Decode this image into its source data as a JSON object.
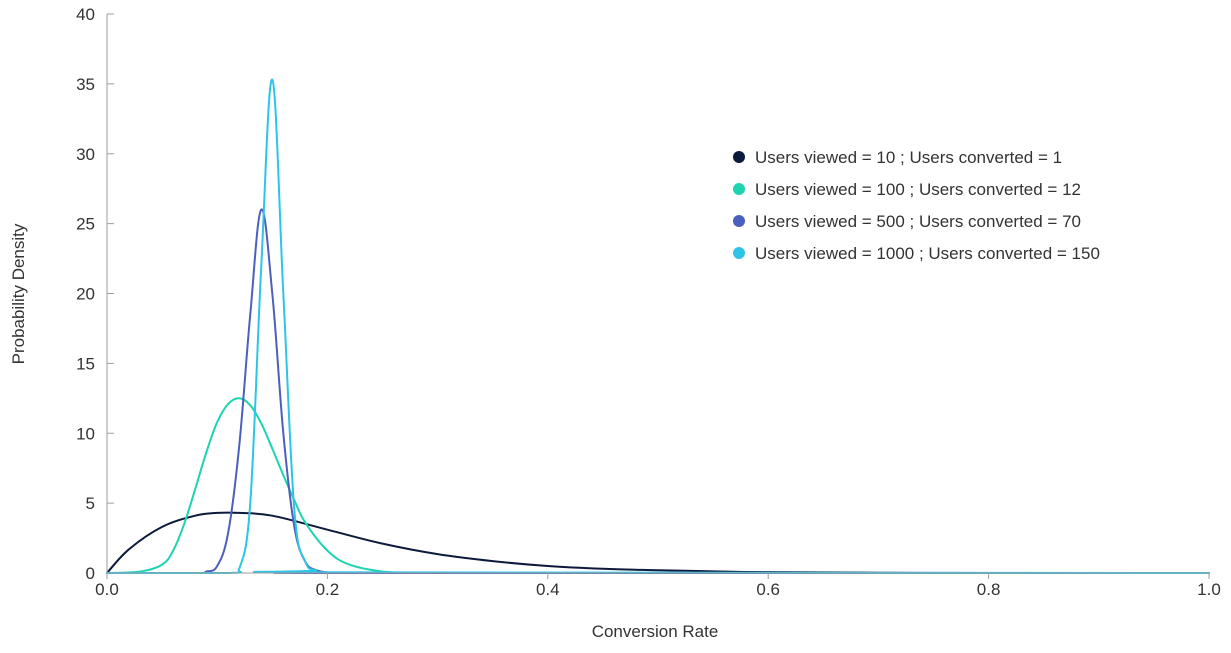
{
  "chart_data": {
    "type": "line",
    "title": "",
    "xlabel": "Conversion Rate",
    "ylabel": "Probability Density",
    "xlim": [
      0,
      1
    ],
    "ylim": [
      0,
      40
    ],
    "x_ticks": [
      "0.0",
      "0.2",
      "0.4",
      "0.6",
      "0.8",
      "1.0"
    ],
    "y_ticks": [
      "0",
      "5",
      "10",
      "15",
      "20",
      "25",
      "30",
      "35",
      "40"
    ],
    "grid": false,
    "legend_position": "top-right",
    "series": [
      {
        "name": "Users viewed = 10 ; Users converted = 1",
        "color": "#0c1a3c",
        "x": [
          0.0,
          0.02,
          0.05,
          0.08,
          0.1,
          0.12,
          0.15,
          0.2,
          0.25,
          0.3,
          0.35,
          0.4,
          0.45,
          0.5,
          0.55,
          0.6,
          0.7,
          0.8,
          1.0
        ],
        "y": [
          0.0,
          1.7,
          3.3,
          4.1,
          4.3,
          4.3,
          4.1,
          3.1,
          2.1,
          1.35,
          0.85,
          0.5,
          0.3,
          0.2,
          0.12,
          0.06,
          0.02,
          0.0,
          0.0
        ]
      },
      {
        "name": "Users viewed = 100 ; Users converted = 12",
        "color": "#1dd3b0",
        "x": [
          0.0,
          0.03,
          0.05,
          0.06,
          0.07,
          0.08,
          0.09,
          0.1,
          0.11,
          0.12,
          0.13,
          0.14,
          0.15,
          0.16,
          0.17,
          0.18,
          0.2,
          0.22,
          0.25,
          0.28,
          0.3,
          1.0
        ],
        "y": [
          0.0,
          0.1,
          0.6,
          1.6,
          3.5,
          6.0,
          8.6,
          10.8,
          12.1,
          12.5,
          12.0,
          10.7,
          8.9,
          7.0,
          5.2,
          3.6,
          1.6,
          0.6,
          0.1,
          0.02,
          0.0,
          0.0
        ]
      },
      {
        "name": "Users viewed = 500 ; Users converted = 70",
        "color": "#4c5fbf",
        "x": [
          0.0,
          0.08,
          0.09,
          0.1,
          0.11,
          0.12,
          0.13,
          0.14,
          0.15,
          0.16,
          0.17,
          0.18,
          0.19,
          0.2,
          0.22,
          1.0
        ],
        "y": [
          0.0,
          0.0,
          0.1,
          0.5,
          2.9,
          9.1,
          18.5,
          26.0,
          20.0,
          10.0,
          3.3,
          0.8,
          0.2,
          0.05,
          0.0,
          0.0
        ]
      },
      {
        "name": "Users viewed = 1000 ; Users converted = 150",
        "color": "#2ec4e6",
        "x": [
          0.0,
          0.11,
          0.12,
          0.13,
          0.14,
          0.15,
          0.16,
          0.17,
          0.18,
          0.19,
          0.2,
          1.0
        ],
        "y": [
          0.0,
          0.0,
          0.3,
          5.0,
          22.0,
          35.3,
          20.0,
          4.5,
          0.8,
          0.2,
          0.05,
          0.0
        ]
      }
    ]
  }
}
